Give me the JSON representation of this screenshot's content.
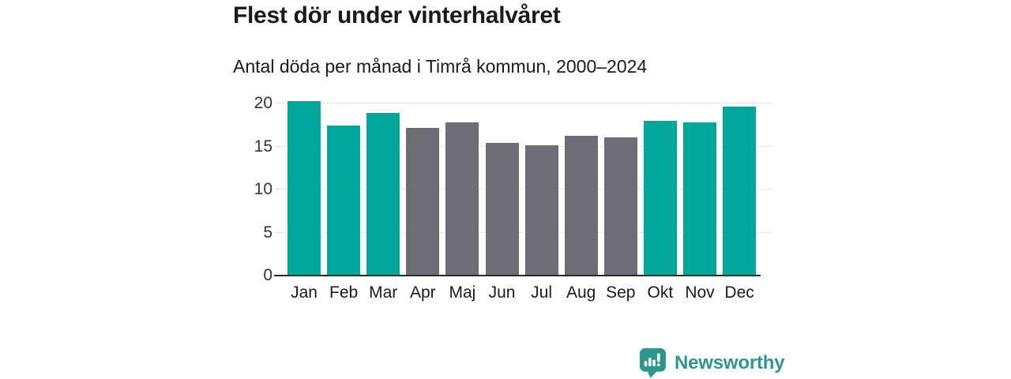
{
  "header": {
    "title": "Flest dör under vinterhalvåret",
    "subtitle": "Antal döda per månad i Timrå kommun, 2000–2024"
  },
  "chart_data": {
    "type": "bar",
    "title": "Flest dör under vinterhalvåret",
    "subtitle": "Antal döda per månad i Timrå kommun, 2000–2024",
    "categories": [
      "Jan",
      "Feb",
      "Mar",
      "Apr",
      "Maj",
      "Jun",
      "Jul",
      "Aug",
      "Sep",
      "Okt",
      "Nov",
      "Dec"
    ],
    "values": [
      20.3,
      17.4,
      18.9,
      17.2,
      17.8,
      15.4,
      15.1,
      16.2,
      16.1,
      18.0,
      17.8,
      19.6
    ],
    "highlight_months": [
      "Jan",
      "Feb",
      "Mar",
      "Okt",
      "Nov",
      "Dec"
    ],
    "xlabel": "",
    "ylabel": "",
    "ylim": [
      0,
      20
    ],
    "yticks": [
      0,
      5,
      10,
      15,
      20
    ],
    "grid": true,
    "legend": false
  },
  "colors": {
    "bar_highlight": "#00a79a",
    "bar_base": "#6e6c75",
    "grid_line": "#e7e7e7",
    "axis_line": "#2b2b2b",
    "text_dark": "#1a1a1a",
    "tick_text": "#333333",
    "logo_teal": "#2f968e",
    "background": "#ffffff"
  },
  "footer": {
    "brand": "Newsworthy",
    "logo_icon": "bar-chart-speech-bubble-icon"
  }
}
